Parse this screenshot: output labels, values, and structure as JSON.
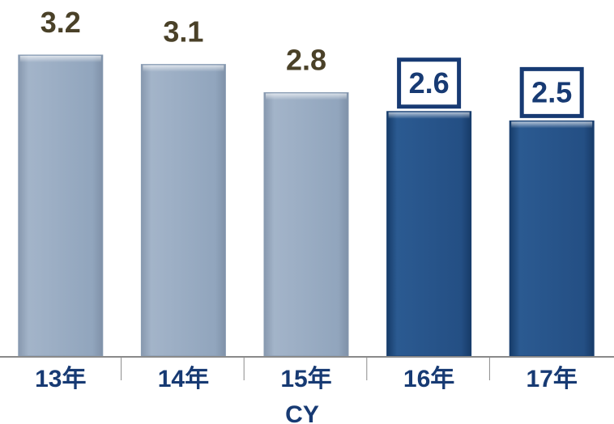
{
  "chart_data": {
    "type": "bar",
    "categories": [
      "13年",
      "14年",
      "15年",
      "16年",
      "17年"
    ],
    "values": [
      3.2,
      3.1,
      2.8,
      2.6,
      2.5
    ],
    "value_labels": [
      "3.2",
      "3.1",
      "2.8",
      "2.6",
      "2.5"
    ],
    "xlabel": "CY",
    "ylabel": "",
    "ylim": [
      0,
      3.4
    ],
    "grid": false,
    "legend": "none",
    "boxed_labels": [
      false,
      false,
      false,
      true,
      true
    ],
    "colors": {
      "historical": "#93a7bf",
      "forecast": "#244f84",
      "label": "#4a4128",
      "box": "#173a73",
      "axis": "#8a8a8a"
    }
  }
}
